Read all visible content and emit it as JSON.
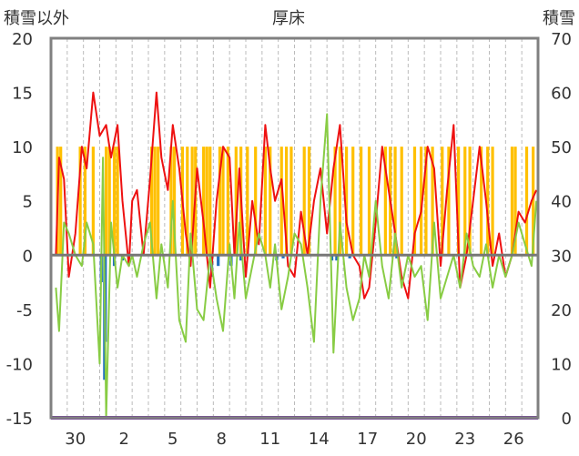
{
  "chart_data": {
    "type": "line",
    "title": "厚床",
    "ylabel_left": "積雪以外",
    "ylabel_right": "積雪",
    "xlabel": "",
    "x_tick_labels": [
      "30",
      "2",
      "5",
      "8",
      "11",
      "14",
      "17",
      "20",
      "23",
      "26"
    ],
    "x_range_days": [
      0,
      30
    ],
    "x_tick_day_index": [
      1.5,
      4.5,
      7.5,
      10.5,
      13.5,
      16.5,
      19.5,
      22.5,
      25.5,
      28.5
    ],
    "ylim_left": [
      -15,
      20
    ],
    "ylim_right": [
      0,
      70
    ],
    "y_ticks_left": [
      -15,
      -10,
      -5,
      0,
      5,
      10,
      15,
      20
    ],
    "y_ticks_right": [
      0,
      10,
      20,
      30,
      40,
      50,
      60,
      70
    ],
    "grid": "vertical dashed lines each day",
    "legend": "none",
    "colors": {
      "temp_max": "#ee1111",
      "temp_min": "#88cc44",
      "sunshine_bars": "#ffc000",
      "precip_bars": "#1f6fbf",
      "snow_line": "#7030a0",
      "zero_line": "#777777"
    },
    "series": [
      {
        "name": "",
        "type": "line",
        "axis": "left",
        "color": "#ee1111",
        "x": [
          0.3,
          0.5,
          0.8,
          1.1,
          1.5,
          1.9,
          2.2,
          2.6,
          3.0,
          3.4,
          3.7,
          4.1,
          4.4,
          4.8,
          5.0,
          5.3,
          5.7,
          6.1,
          6.5,
          6.8,
          7.2,
          7.5,
          7.9,
          8.3,
          8.6,
          9.0,
          9.4,
          9.8,
          10.2,
          10.6,
          11.0,
          11.3,
          11.6,
          12.0,
          12.4,
          12.8,
          13.2,
          13.5,
          13.8,
          14.2,
          14.6,
          15.0,
          15.4,
          15.8,
          16.2,
          16.6,
          17.0,
          17.4,
          17.8,
          18.2,
          18.6,
          19.0,
          19.3,
          19.6,
          20.0,
          20.4,
          20.8,
          21.2,
          21.6,
          22.0,
          22.4,
          22.8,
          23.2,
          23.6,
          24.0,
          24.4,
          24.8,
          25.2,
          25.6,
          26.0,
          26.4,
          26.8,
          27.2,
          27.6,
          28.0,
          28.4,
          28.8,
          29.2,
          29.6,
          29.9
        ],
        "values": [
          0,
          9,
          7,
          -2,
          2,
          10,
          8,
          15,
          11,
          12,
          9,
          12,
          5,
          -1,
          5,
          6,
          0,
          7,
          15,
          9,
          6,
          12,
          8,
          2,
          -1,
          8,
          3,
          -3,
          5,
          10,
          9,
          0,
          8,
          -2,
          5,
          1,
          12,
          8,
          5,
          7,
          -1,
          -2,
          4,
          0,
          5,
          8,
          2,
          8,
          12,
          3,
          0,
          -1,
          -4,
          -3,
          3,
          10,
          6,
          2,
          -2,
          -4,
          2,
          4,
          10,
          8,
          -1,
          6,
          12,
          -3,
          0,
          5,
          10,
          5,
          -1,
          2,
          -2,
          0,
          4,
          3,
          5,
          6
        ]
      },
      {
        "name": "",
        "type": "line",
        "axis": "left",
        "color": "#88cc44",
        "x": [
          0.3,
          0.5,
          0.8,
          1.1,
          1.5,
          1.9,
          2.2,
          2.6,
          3.0,
          3.2,
          3.4,
          3.7,
          4.1,
          4.4,
          4.8,
          5.0,
          5.3,
          5.7,
          6.1,
          6.5,
          6.8,
          7.2,
          7.5,
          7.9,
          8.3,
          8.6,
          9.0,
          9.4,
          9.8,
          10.2,
          10.6,
          11.0,
          11.3,
          11.6,
          12.0,
          12.4,
          12.8,
          13.2,
          13.5,
          13.8,
          14.2,
          14.6,
          15.0,
          15.4,
          15.8,
          16.2,
          16.6,
          17.0,
          17.4,
          17.8,
          18.2,
          18.6,
          19.0,
          19.3,
          19.6,
          20.0,
          20.4,
          20.8,
          21.2,
          21.6,
          22.0,
          22.4,
          22.8,
          23.2,
          23.6,
          24.0,
          24.4,
          24.8,
          25.2,
          25.6,
          26.0,
          26.4,
          26.8,
          27.2,
          27.6,
          28.0,
          28.4,
          28.8,
          29.2,
          29.6,
          29.9
        ],
        "values": [
          -3,
          -7,
          3,
          2,
          0,
          -1,
          3,
          1,
          -10,
          9,
          -15,
          3,
          -3,
          0,
          -1,
          0,
          -2,
          1,
          3,
          -4,
          1,
          -3,
          5,
          -6,
          -8,
          2,
          -5,
          -6,
          0,
          -4,
          -7,
          1,
          -4,
          3,
          -4,
          -1,
          2,
          0,
          -3,
          1,
          -5,
          -2,
          2,
          1,
          -3,
          -8,
          5,
          13,
          -9,
          3,
          -3,
          -6,
          -4,
          0,
          -2,
          5,
          -1,
          -4,
          2,
          -3,
          0,
          -2,
          -1,
          -6,
          3,
          -4,
          -2,
          0,
          -3,
          2,
          -1,
          -2,
          1,
          -3,
          0,
          -2,
          0,
          3,
          1,
          -1,
          5
        ]
      },
      {
        "name": "",
        "type": "bar",
        "axis": "left",
        "color": "#ffc000",
        "x": [
          0.4,
          0.6,
          1.8,
          2.1,
          2.6,
          3.4,
          3.6,
          3.9,
          4.1,
          6.2,
          6.4,
          6.6,
          7.4,
          7.6,
          8.1,
          8.4,
          8.7,
          8.9,
          9.4,
          9.6,
          9.8,
          10.4,
          10.6,
          10.9,
          11.4,
          11.7,
          12.1,
          12.6,
          13.2,
          13.5,
          14.2,
          14.5,
          14.8,
          15.6,
          15.9,
          17.5,
          17.8,
          18.2,
          18.6,
          19.1,
          19.6,
          20.6,
          20.9,
          21.2,
          21.6,
          22.4,
          22.8,
          23.1,
          23.5,
          24.1,
          24.5,
          25.1,
          25.5,
          25.8,
          26.5,
          26.9,
          27.2,
          28.4,
          28.6,
          29.3,
          29.7
        ],
        "values": [
          10,
          10,
          10,
          10,
          10,
          10,
          10,
          10,
          10,
          10,
          10,
          10,
          10,
          10,
          10,
          10,
          10,
          10,
          10,
          10,
          10,
          10,
          10,
          10,
          10,
          10,
          10,
          10,
          10,
          10,
          10,
          10,
          10,
          10,
          10,
          10,
          10,
          10,
          10,
          10,
          10,
          10,
          10,
          10,
          10,
          10,
          10,
          10,
          10,
          10,
          10,
          10,
          10,
          10,
          10,
          10,
          10,
          10,
          10,
          10,
          10
        ]
      },
      {
        "name": "",
        "type": "bar",
        "axis": "left",
        "color": "#1f6fbf",
        "x": [
          3.1,
          3.3,
          3.35,
          3.9,
          4.4,
          9.9,
          10.3,
          11.1,
          11.7,
          13.9,
          14.3,
          17.3,
          17.6,
          18.4,
          21.3
        ],
        "values": [
          -2.5,
          -11.5,
          -8,
          -1,
          -0.5,
          -2,
          -1,
          -1,
          -0.5,
          -0.5,
          -0.3,
          -0.5,
          -0.5,
          -0.3,
          -0.3
        ]
      },
      {
        "name": "",
        "type": "line",
        "axis": "right",
        "color": "#7030a0",
        "x": [
          0,
          30
        ],
        "values": [
          0,
          0
        ]
      }
    ]
  }
}
